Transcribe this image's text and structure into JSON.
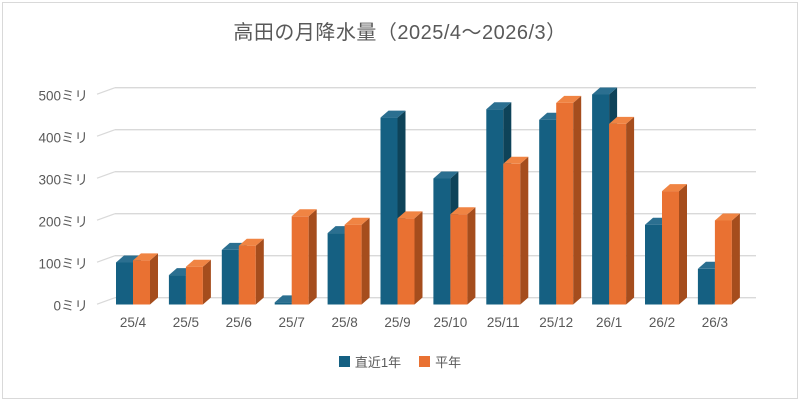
{
  "title": "高田の月降水量（2025/4～2026/3）",
  "chart_data": {
    "type": "bar",
    "style": "3d-clustered-column",
    "title": "高田の月降水量（2025/4～2026/3）",
    "categories": [
      "25/4",
      "25/5",
      "25/6",
      "25/7",
      "25/8",
      "25/9",
      "25/10",
      "25/11",
      "25/12",
      "26/1",
      "26/2",
      "26/3"
    ],
    "series": [
      {
        "name": "直近1年",
        "values": [
          100,
          70,
          130,
          5,
          170,
          445,
          300,
          465,
          440,
          500,
          190,
          85
        ],
        "color": "#156082",
        "color_top": "#2B6F90",
        "color_side": "#0E4359"
      },
      {
        "name": "平年",
        "values": [
          105,
          90,
          140,
          210,
          190,
          205,
          215,
          335,
          480,
          430,
          270,
          200
        ],
        "color": "#E97132",
        "color_top": "#F08443",
        "color_side": "#A54D1D"
      }
    ],
    "unit": "ミリ",
    "yticks": [
      0,
      100,
      200,
      300,
      400,
      500
    ],
    "ytick_labels": [
      "0ミリ",
      "100ミリ",
      "200ミリ",
      "300ミリ",
      "400ミリ",
      "500ミリ"
    ],
    "ylim": [
      0,
      500
    ],
    "grid": true,
    "legend_position": "bottom",
    "gridline_color": "#D9D9D9",
    "text_color": "#595959"
  },
  "legend": {
    "items": [
      {
        "label": "直近1年",
        "color": "#156082"
      },
      {
        "label": "平年",
        "color": "#E97132"
      }
    ]
  }
}
